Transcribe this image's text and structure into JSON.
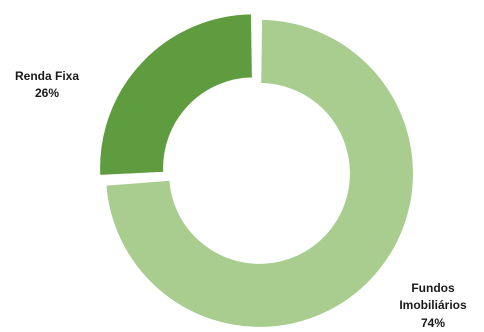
{
  "chart_data": {
    "type": "pie",
    "variant": "donut",
    "title": "",
    "legend": "none",
    "slices": [
      {
        "label_lines": [
          "Fundos",
          "Imobiliários"
        ],
        "percent_label": "74%",
        "value": 74,
        "color": "#a9cc8f"
      },
      {
        "label_lines": [
          "Renda Fixa"
        ],
        "percent_label": "26%",
        "value": 26,
        "color": "#5f9c3f"
      }
    ]
  }
}
